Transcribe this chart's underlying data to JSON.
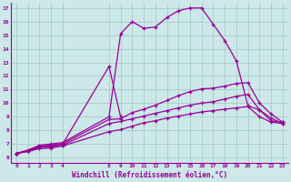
{
  "xlabel": "Windchill (Refroidissement éolien,°C)",
  "bg_color": "#cce8e8",
  "line_color": "#990099",
  "grid_color": "#aacccc",
  "xtick_values": [
    0,
    1,
    2,
    3,
    4,
    8,
    9,
    10,
    11,
    12,
    13,
    14,
    15,
    16,
    17,
    18,
    19,
    20,
    21,
    22,
    23
  ],
  "ytick_values": [
    6,
    7,
    8,
    9,
    10,
    11,
    12,
    13,
    14,
    15,
    16,
    17
  ],
  "ylim": [
    5.6,
    17.4
  ],
  "xlim": [
    -0.5,
    23.5
  ],
  "line1_x": [
    0,
    1,
    2,
    3,
    4,
    8,
    9,
    10,
    11,
    12,
    13,
    14,
    15,
    16,
    17,
    18,
    19,
    20,
    21,
    22,
    23
  ],
  "line1_y": [
    6.3,
    6.55,
    6.9,
    7.0,
    7.1,
    9.0,
    15.1,
    16.0,
    15.5,
    15.6,
    16.3,
    16.8,
    17.0,
    17.0,
    15.8,
    14.6,
    13.1,
    9.8,
    9.5,
    8.7,
    8.6
  ],
  "line2_x": [
    0,
    1,
    2,
    3,
    4,
    8,
    9,
    10,
    11,
    12,
    13,
    14,
    15,
    16,
    17,
    18,
    19,
    20,
    21,
    22,
    23
  ],
  "line2_y": [
    6.3,
    6.5,
    6.85,
    6.9,
    7.0,
    8.8,
    8.85,
    9.3,
    9.55,
    9.85,
    10.2,
    10.55,
    10.85,
    11.05,
    11.1,
    11.25,
    11.45,
    11.5,
    10.0,
    9.2,
    8.6
  ],
  "line3_x": [
    0,
    1,
    2,
    3,
    4,
    8,
    9,
    10,
    11,
    12,
    13,
    14,
    15,
    16,
    17,
    18,
    19,
    20,
    21,
    22,
    23
  ],
  "line3_y": [
    6.3,
    6.45,
    6.75,
    6.8,
    6.9,
    8.5,
    8.65,
    8.85,
    9.05,
    9.25,
    9.45,
    9.65,
    9.85,
    10.0,
    10.1,
    10.3,
    10.5,
    10.65,
    9.5,
    8.9,
    8.5
  ],
  "line4_x": [
    0,
    1,
    2,
    3,
    4,
    8,
    9,
    10,
    11,
    12,
    13,
    14,
    15,
    16,
    17,
    18,
    19,
    20,
    21,
    22,
    23
  ],
  "line4_y": [
    6.3,
    6.45,
    6.65,
    6.7,
    6.85,
    7.9,
    8.05,
    8.3,
    8.55,
    8.7,
    8.9,
    9.05,
    9.2,
    9.35,
    9.45,
    9.55,
    9.65,
    9.75,
    9.0,
    8.6,
    8.5
  ],
  "line5_x": [
    0,
    1,
    2,
    4,
    8,
    9
  ],
  "line5_y": [
    6.3,
    6.5,
    6.8,
    7.0,
    12.7,
    9.0
  ]
}
